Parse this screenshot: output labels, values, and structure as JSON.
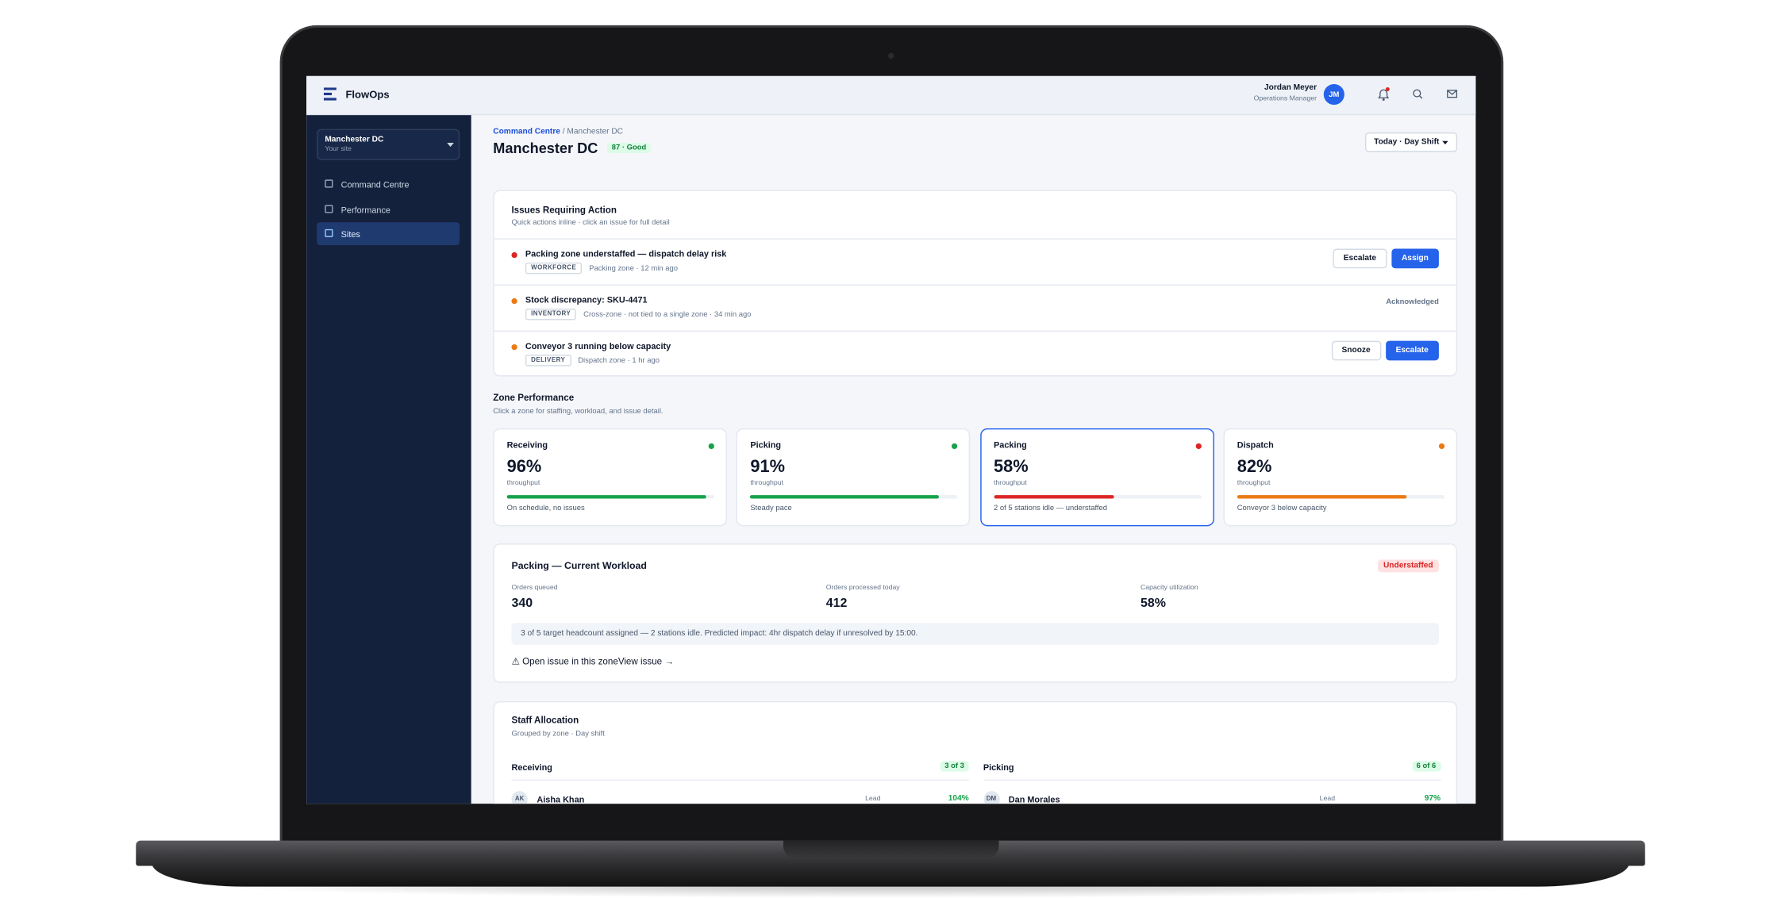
{
  "app": {
    "name": "FlowOps"
  },
  "user": {
    "name": "Jordan Meyer",
    "role": "Operations Manager",
    "initials": "JM"
  },
  "sidebar": {
    "site": "Manchester DC",
    "site_sub": "Your site",
    "nav": [
      "Command Centre",
      "Performance",
      "Sites"
    ],
    "active": 2
  },
  "page": {
    "breadcrumb": [
      "Command Centre",
      "Manchester DC"
    ],
    "separator": "/",
    "title": "Manchester DC",
    "score": "87 · Good",
    "shift": "Today · Day Shift"
  },
  "issues": {
    "title": "Issues Requiring Action",
    "subtitle": "Quick actions inline · click an issue for full detail",
    "items": [
      {
        "title": "Packing zone understaffed — dispatch delay risk",
        "tag": "WORKFORCE",
        "meta": "Packing zone · 12 min ago",
        "color": "#dc2626",
        "actions": [
          {
            "label": "Escalate",
            "primary": false
          },
          {
            "label": "Assign",
            "primary": true
          }
        ]
      },
      {
        "title": "Stock discrepancy: SKU-4471",
        "tag": "INVENTORY",
        "meta": "Cross-zone · not tied to a single zone · 34 min ago",
        "color": "#ea7a14",
        "status": "Acknowledged"
      },
      {
        "title": "Conveyor 3 running below capacity",
        "tag": "DELIVERY",
        "meta": "Dispatch zone · 1 hr ago",
        "color": "#ea7a14",
        "actions": [
          {
            "label": "Snooze",
            "primary": false
          },
          {
            "label": "Escalate",
            "primary": true
          }
        ]
      }
    ]
  },
  "zones": {
    "title": "Zone Performance",
    "subtitle": "Click a zone for staffing, workload, and issue detail.",
    "metric": "throughput",
    "items": [
      {
        "name": "Receiving",
        "value": 96,
        "value_label": "96%",
        "note": "On schedule, no issues",
        "color": "#16a34a",
        "selected": false
      },
      {
        "name": "Picking",
        "value": 91,
        "value_label": "91%",
        "note": "Steady pace",
        "color": "#16a34a",
        "selected": false
      },
      {
        "name": "Packing",
        "value": 58,
        "value_label": "58%",
        "note": "2 of 5 stations idle — understaffed",
        "color": "#dc2626",
        "selected": true
      },
      {
        "name": "Dispatch",
        "value": 82,
        "value_label": "82%",
        "note": "Conveyor 3 below capacity",
        "color": "#ea7a14",
        "selected": false
      }
    ]
  },
  "workload": {
    "title": "Packing — Current Workload",
    "status": "Understaffed",
    "stats": [
      {
        "label": "Orders queued",
        "value": 340
      },
      {
        "label": "Orders processed today",
        "value": 412
      },
      {
        "label": "Capacity utilization",
        "value": "58%"
      }
    ],
    "note": "3 of 5 target headcount assigned — 2 stations idle. Predicted impact: 4hr dispatch delay if unresolved by 15:00.",
    "link": "⚠ Open issue in this zone",
    "link2": "View issue →"
  },
  "staff": {
    "title": "Staff Allocation",
    "subtitle": "Grouped by zone · Day shift",
    "groups": [
      {
        "zone": "Receiving",
        "count": "3 of 3",
        "members": [
          {
            "initials": "AK",
            "name": "Aisha Khan",
            "role": "Lead",
            "load": "104%"
          }
        ]
      },
      {
        "zone": "Picking",
        "count": "6 of 6",
        "members": [
          {
            "initials": "DM",
            "name": "Dan Morales",
            "role": "Lead",
            "load": "97%"
          }
        ]
      }
    ]
  }
}
